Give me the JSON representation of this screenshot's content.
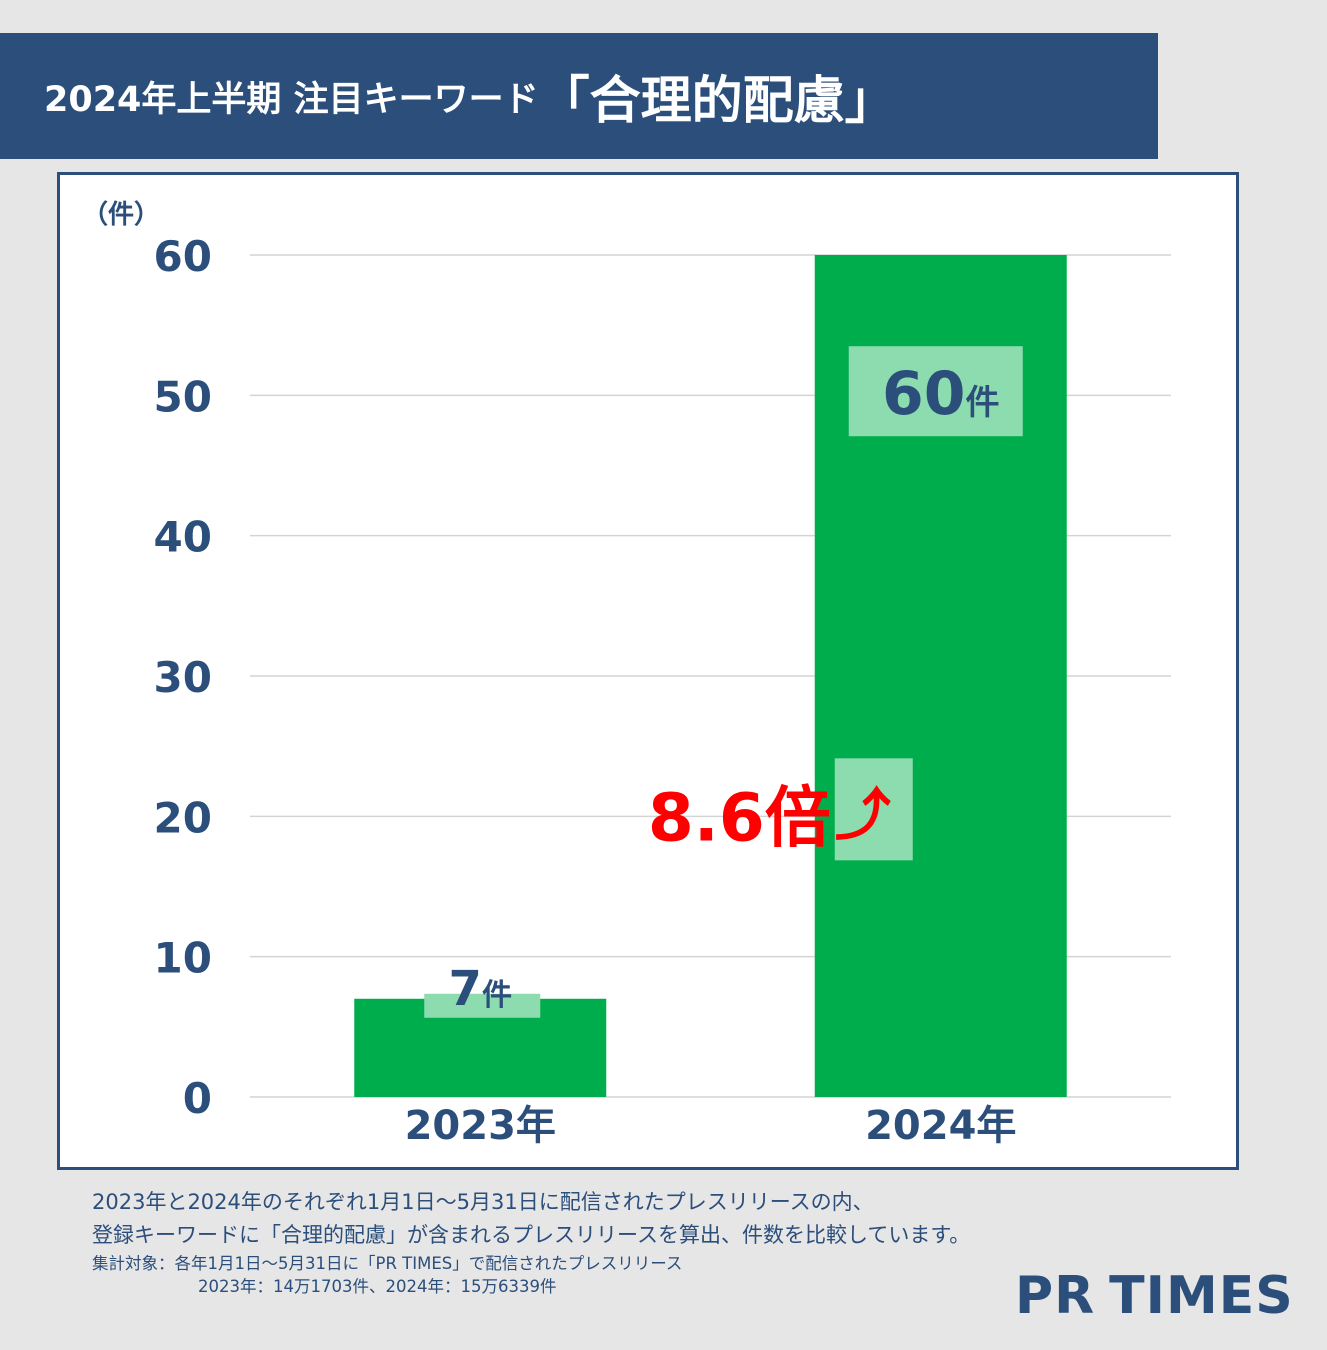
{
  "header": {
    "title_main": "2024年上半期 注目キーワード",
    "title_keyword": "「合理的配慮」"
  },
  "chart_data": {
    "type": "bar",
    "categories": [
      "2023年",
      "2024年"
    ],
    "values": [
      7,
      60
    ],
    "data_labels": [
      {
        "number": "7",
        "unit": "件"
      },
      {
        "number": "60",
        "unit": "件"
      }
    ],
    "ylabel": "（件）",
    "ylim": [
      0,
      60
    ],
    "yticks": [
      "0",
      "10",
      "20",
      "30",
      "40",
      "50",
      "60"
    ],
    "grid": true,
    "bar_color": "#00ad4d",
    "annotation": {
      "text": "8.6倍",
      "arrow": "⤴",
      "color": "#ff0000"
    }
  },
  "footnotes": {
    "line1": "2023年と2024年のそれぞれ1月1日～5月31日に配信されたプレスリリースの内、",
    "line2": "登録キーワードに「合理的配慮」が含まれるプレスリリースを算出、件数を比較しています。",
    "line3": "集計対象：各年1月1日～5月31日に「PR TIMES」で配信されたプレスリリース",
    "line4": "2023年：14万1703件、2024年：15万6339件"
  },
  "logo": {
    "part1": "PR",
    "part2": "TIMES"
  },
  "colors": {
    "navy": "#2b4e7b",
    "bar": "#00ad4d",
    "label_box": "#8ddcb0",
    "accent_red": "#ff0000",
    "background": "#e6e6e6"
  }
}
